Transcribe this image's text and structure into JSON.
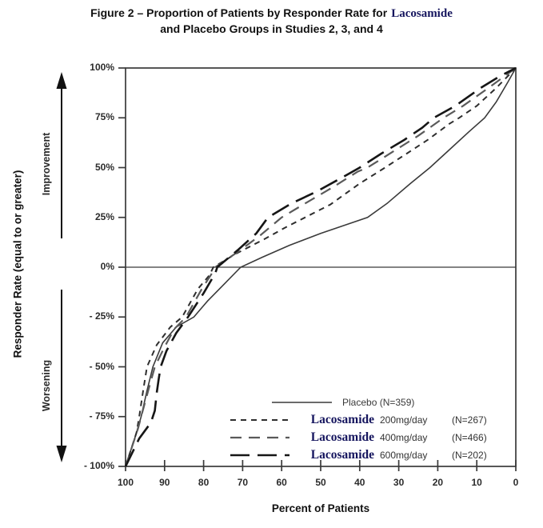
{
  "title": {
    "line1_prefix": "Figure 2 – Proportion of Patients by Responder Rate for",
    "line1_highlight": "Lacosamide",
    "line2": "and Placebo Groups in Studies 2, 3, and 4"
  },
  "chart_data": {
    "type": "line",
    "title": "Figure 2 – Proportion of Patients by Responder Rate for Lacosamide and Placebo Groups in Studies 2, 3, and 4",
    "xlabel": "Percent of Patients",
    "ylabel": "Responder Rate (equal to or greater)",
    "annotations": {
      "improvement": "Improvement",
      "worsening": "Worsening"
    },
    "x_axis": {
      "range": [
        100,
        0
      ],
      "reversed": true,
      "ticks": [
        100,
        90,
        80,
        70,
        60,
        50,
        40,
        30,
        20,
        10,
        0
      ]
    },
    "y_axis": {
      "range": [
        -100,
        100
      ],
      "ticks": [
        100,
        75,
        50,
        25,
        0,
        -25,
        -50,
        -75,
        -100
      ],
      "tick_labels": [
        "100%",
        "75%",
        "50%",
        "25%",
        "0%",
        "- 25%",
        "- 50%",
        "- 75%",
        "- 100%"
      ]
    },
    "zero_line": true,
    "grid": false,
    "legend_position": "inside lower right",
    "series": [
      {
        "label": "Placebo",
        "brand": null,
        "dose": null,
        "n_label": "(N=359)",
        "line_style": "solid",
        "color": "#3a3a3a",
        "width": 1.6,
        "points": [
          [
            100,
            -100
          ],
          [
            97.5,
            -85
          ],
          [
            96,
            -75
          ],
          [
            94.5,
            -62
          ],
          [
            93,
            -50
          ],
          [
            90.5,
            -38
          ],
          [
            87,
            -30
          ],
          [
            82.5,
            -25
          ],
          [
            79,
            -17
          ],
          [
            75.5,
            -10
          ],
          [
            70.5,
            0
          ],
          [
            65,
            5
          ],
          [
            58,
            11
          ],
          [
            50,
            17
          ],
          [
            44,
            21
          ],
          [
            38,
            25
          ],
          [
            33,
            32
          ],
          [
            27,
            42
          ],
          [
            22,
            50
          ],
          [
            17,
            59
          ],
          [
            12,
            68
          ],
          [
            8,
            75
          ],
          [
            5,
            83
          ],
          [
            2,
            93
          ],
          [
            0,
            100
          ]
        ]
      },
      {
        "label": "Lacosamide 200mg/day",
        "brand": "Lacosamide",
        "dose": "200mg/day",
        "n_label": "(N=267)",
        "line_style": "short-dash",
        "color": "#2e2e2e",
        "width": 2,
        "points": [
          [
            100,
            -100
          ],
          [
            97.2,
            -83
          ],
          [
            96.5,
            -75
          ],
          [
            95.5,
            -62
          ],
          [
            94.5,
            -50
          ],
          [
            92,
            -39
          ],
          [
            88.5,
            -30
          ],
          [
            85.5,
            -25
          ],
          [
            81.5,
            -11
          ],
          [
            78.5,
            -4
          ],
          [
            77.5,
            0
          ],
          [
            71.5,
            7
          ],
          [
            64.5,
            14
          ],
          [
            59,
            20
          ],
          [
            54,
            25
          ],
          [
            47.5,
            31.5
          ],
          [
            40,
            42
          ],
          [
            33.5,
            50
          ],
          [
            28,
            57
          ],
          [
            22.5,
            64
          ],
          [
            17,
            72
          ],
          [
            14.5,
            75
          ],
          [
            10,
            81
          ],
          [
            5,
            90
          ],
          [
            0,
            100
          ]
        ]
      },
      {
        "label": "Lacosamide 400mg/day",
        "brand": "Lacosamide",
        "dose": "400mg/day",
        "n_label": "(N=466)",
        "line_style": "medium-dash",
        "color": "#5a5a5a",
        "width": 2.2,
        "points": [
          [
            100,
            -100
          ],
          [
            96.8,
            -81
          ],
          [
            96,
            -75
          ],
          [
            94.2,
            -62
          ],
          [
            92.5,
            -50
          ],
          [
            90,
            -40
          ],
          [
            87.5,
            -31
          ],
          [
            84.5,
            -25
          ],
          [
            80.5,
            -11
          ],
          [
            77.5,
            -2
          ],
          [
            77,
            0
          ],
          [
            71,
            8
          ],
          [
            65.5,
            16
          ],
          [
            60,
            25
          ],
          [
            54,
            32
          ],
          [
            47,
            40
          ],
          [
            40.5,
            48
          ],
          [
            38,
            50
          ],
          [
            31.5,
            58
          ],
          [
            25,
            66
          ],
          [
            18.5,
            75
          ],
          [
            13.5,
            81
          ],
          [
            7,
            90
          ],
          [
            0,
            100
          ]
        ]
      },
      {
        "label": "Lacosamide 600mg/day",
        "brand": "Lacosamide",
        "dose": "600mg/day",
        "n_label": "(N=202)",
        "line_style": "long-dash",
        "color": "#161616",
        "width": 2.6,
        "points": [
          [
            100,
            -100
          ],
          [
            96.5,
            -86
          ],
          [
            93.5,
            -78
          ],
          [
            92.5,
            -72
          ],
          [
            92,
            -63
          ],
          [
            91.5,
            -56
          ],
          [
            91,
            -50
          ],
          [
            89.5,
            -42
          ],
          [
            87,
            -33
          ],
          [
            84,
            -25
          ],
          [
            80,
            -13
          ],
          [
            77,
            -3
          ],
          [
            76.5,
            0
          ],
          [
            71,
            9
          ],
          [
            66.5,
            17
          ],
          [
            63.5,
            25
          ],
          [
            57.5,
            32
          ],
          [
            51,
            38
          ],
          [
            44.5,
            45
          ],
          [
            40,
            50
          ],
          [
            34.5,
            57
          ],
          [
            28.5,
            64
          ],
          [
            24,
            70
          ],
          [
            21,
            75
          ],
          [
            15.5,
            81
          ],
          [
            9,
            90
          ],
          [
            4,
            96
          ],
          [
            0,
            100
          ]
        ]
      }
    ]
  }
}
